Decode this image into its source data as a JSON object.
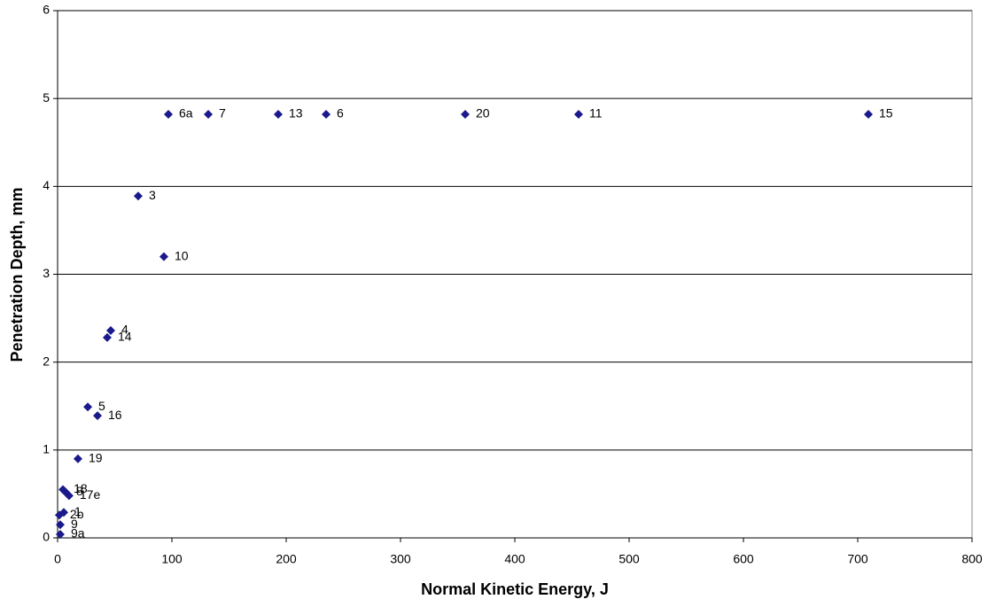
{
  "chart_data": {
    "type": "scatter",
    "x_label": "Normal Kinetic Energy, J",
    "y_label": "Penetration Depth, mm",
    "labels": [
      "6a",
      "7",
      "13",
      "6",
      "20",
      "11",
      "15",
      "3",
      "10",
      "4",
      "14",
      "5",
      "16",
      "19",
      "18",
      "8",
      "17e",
      "2b",
      "1",
      "9",
      "9a"
    ],
    "x": [
      96.9,
      131.8,
      193,
      234.9,
      356.6,
      455.8,
      709.3,
      70.5,
      93,
      46.5,
      43.4,
      26.4,
      34.9,
      17.8,
      4.7,
      7,
      10,
      1.5,
      5.4,
      2.3,
      2.3
    ],
    "values": [
      4.82,
      4.82,
      4.82,
      4.82,
      4.82,
      4.82,
      4.82,
      3.89,
      3.2,
      2.36,
      2.28,
      1.49,
      1.39,
      0.9,
      0.55,
      0.52,
      0.48,
      0.26,
      0.29,
      0.15,
      0.04
    ],
    "color": "#1a1a8c",
    "xlim": [
      0,
      800
    ],
    "xticks": [
      0,
      100,
      200,
      300,
      400,
      500,
      600,
      700,
      800
    ],
    "ylim": [
      0,
      6
    ],
    "yticks": [
      0,
      1,
      2,
      3,
      4,
      5,
      6
    ],
    "grid": true
  }
}
